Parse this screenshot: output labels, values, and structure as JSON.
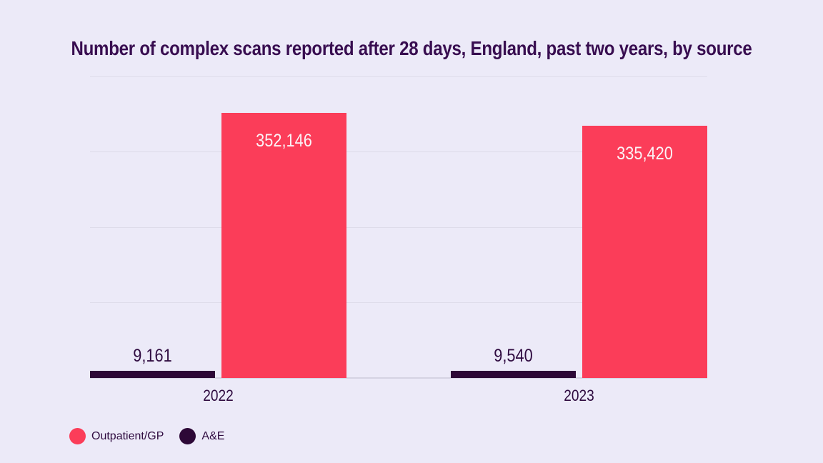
{
  "page": {
    "background": "#ECEAF8"
  },
  "title": {
    "text": "Number of complex scans reported after 28 days, England, past two years, by source",
    "color": "#380D50"
  },
  "chart_data": {
    "type": "bar",
    "title": "Number of complex scans reported after 28 days, England, past two years, by source",
    "categories": [
      "2022",
      "2023"
    ],
    "series": [
      {
        "name": "A&E",
        "color": "#2D0837",
        "values": [
          9161,
          9540
        ],
        "value_labels": [
          "9,161",
          "9,540"
        ],
        "label_placement": "above",
        "label_color": "#2F0B40"
      },
      {
        "name": "Outpatient/GP",
        "color": "#FB3D59",
        "values": [
          352146,
          335420
        ],
        "value_labels": [
          "352,146",
          "335,420"
        ],
        "label_placement": "inside-top",
        "label_color": "#FBF3F6"
      }
    ],
    "xlabel": "",
    "ylabel": "",
    "ylim": [
      0,
      400000
    ],
    "gridline_values": [
      0,
      100000,
      200000,
      300000,
      400000
    ],
    "y_axis_tick_labels_visible": false,
    "grid": true,
    "bar_order_in_group": [
      "A&E",
      "Outpatient/GP"
    ],
    "legend_position": "bottom-left"
  },
  "legend": {
    "items": [
      {
        "label": "Outpatient/GP",
        "color": "#FB3D59"
      },
      {
        "label": "A&E",
        "color": "#2D0837"
      }
    ]
  },
  "colors": {
    "gridline": "#DEDCEA",
    "baseline": "#D5D3E3",
    "tick_label": "#2F0B40"
  }
}
